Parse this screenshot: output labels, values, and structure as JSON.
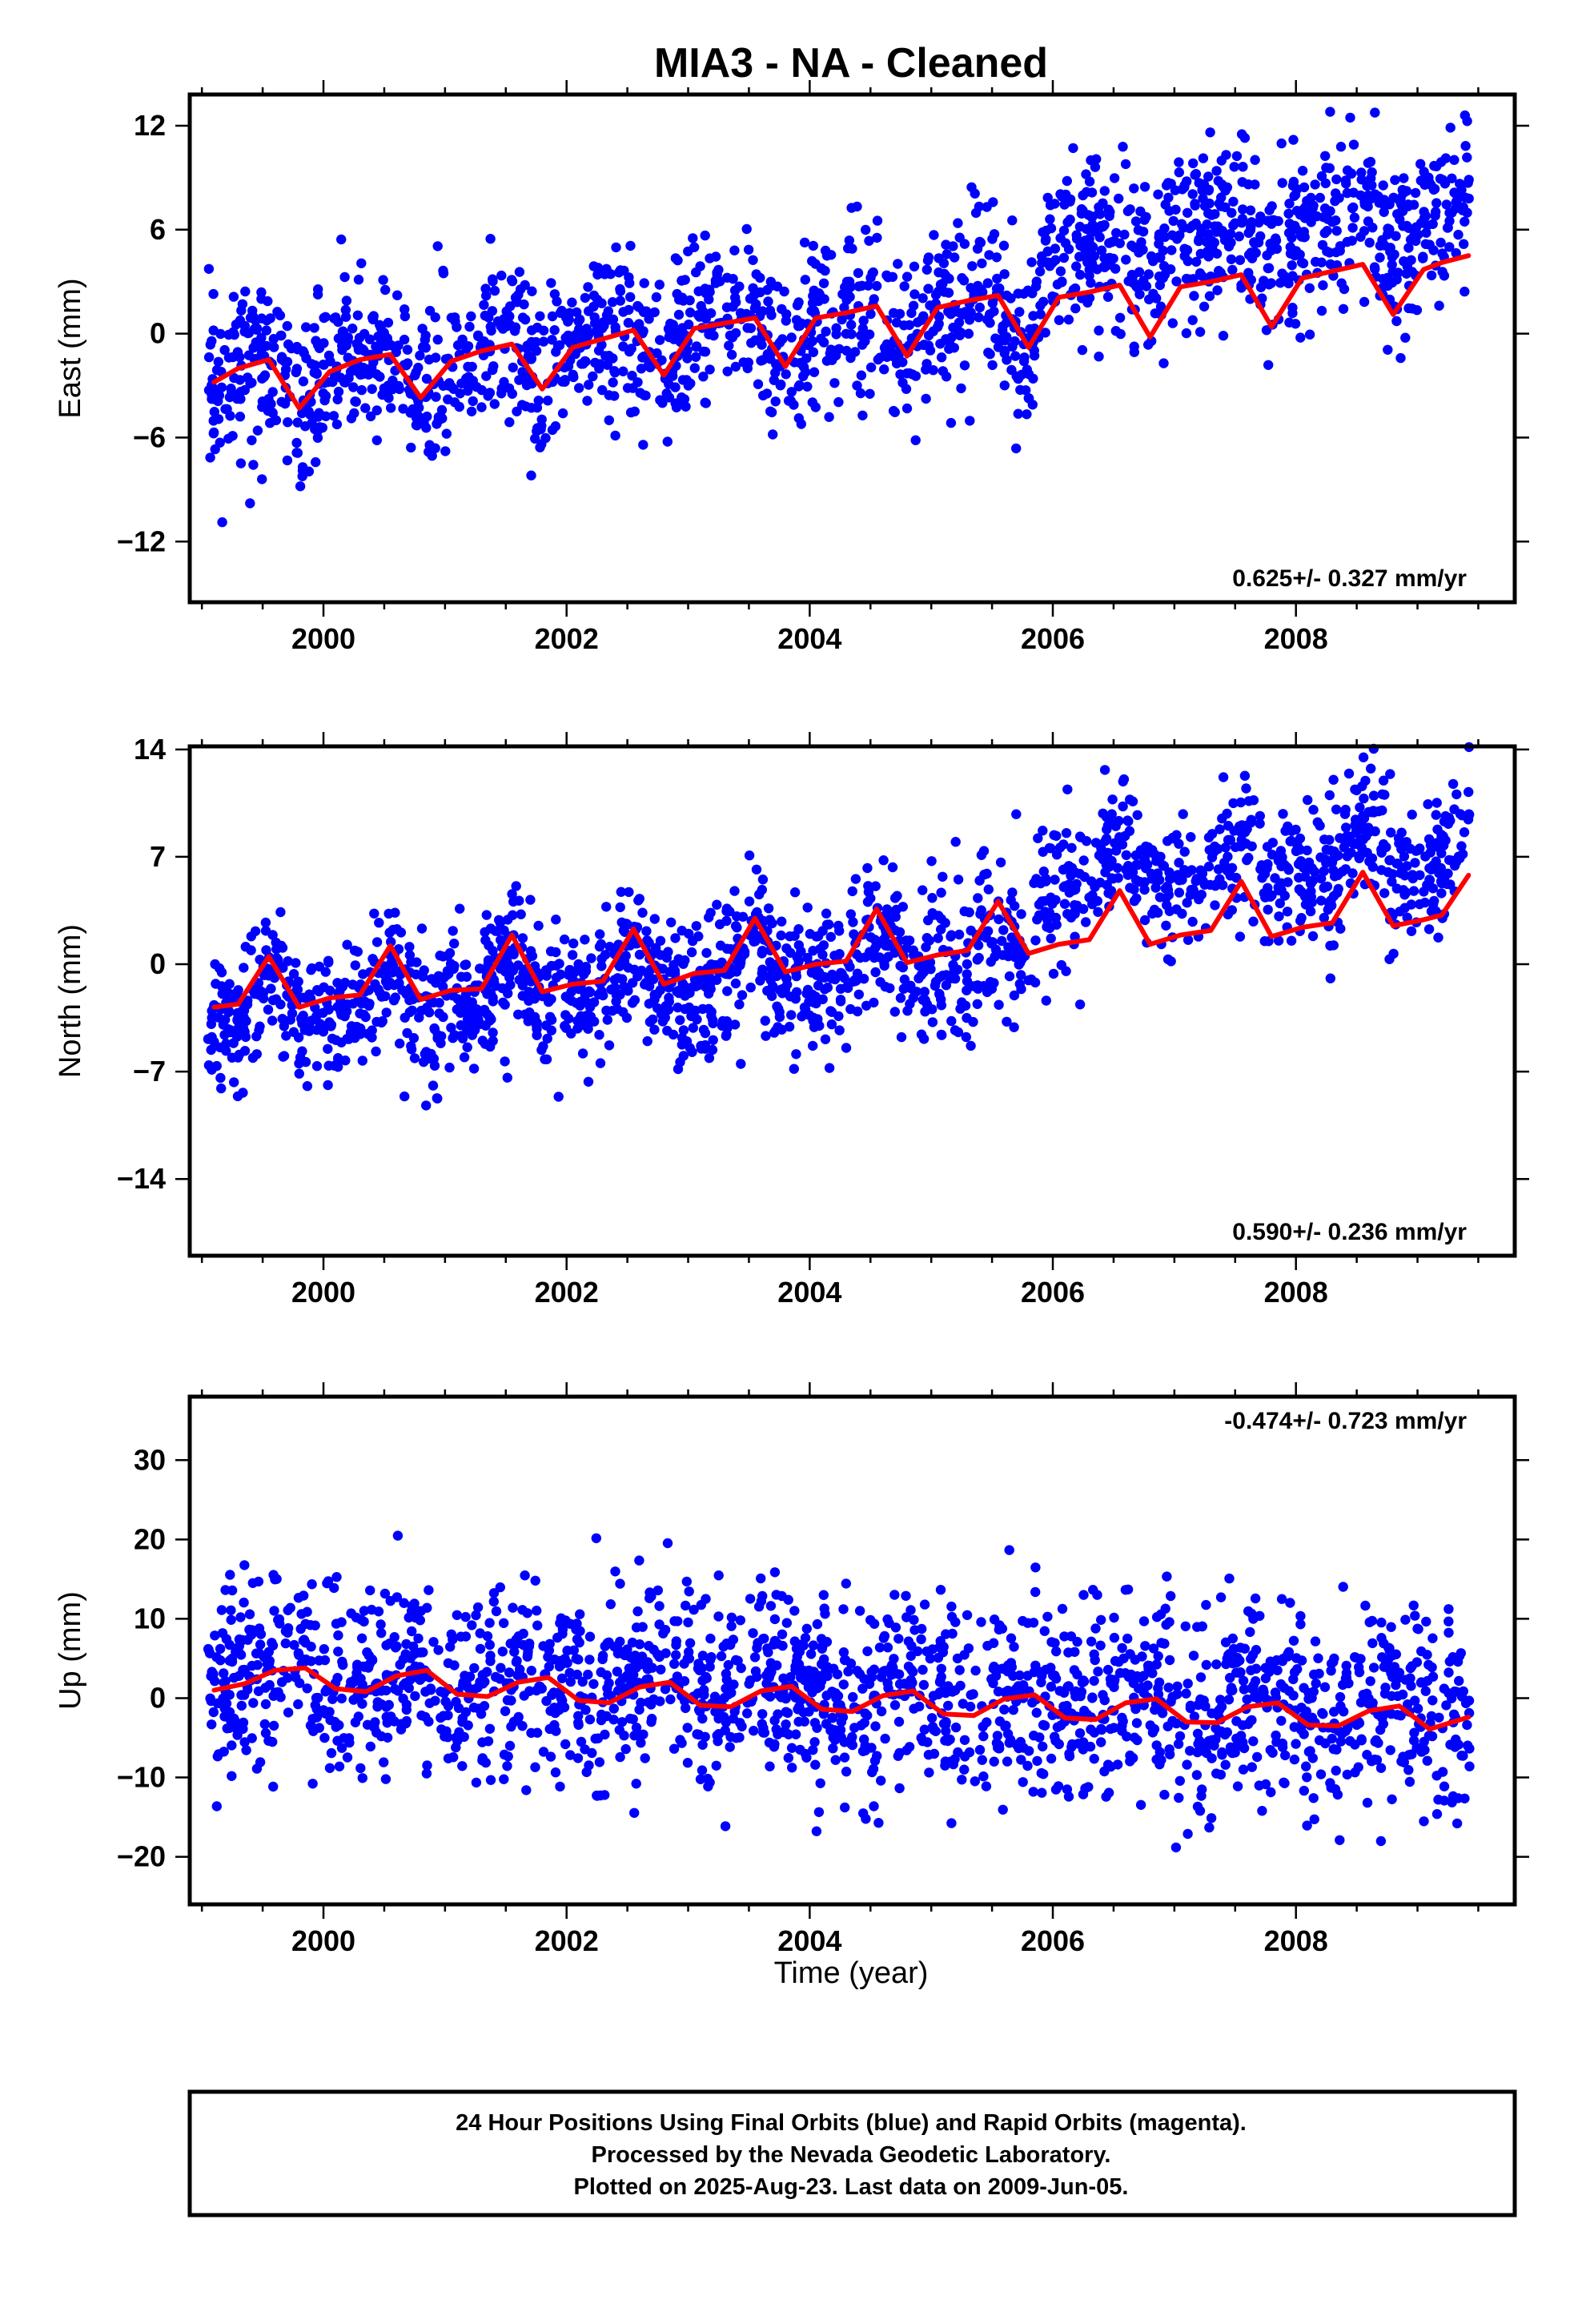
{
  "chart_data": {
    "title": "MIA3  - NA - Cleaned",
    "type": "scatter",
    "xlabel": "Time (year)",
    "xlim": [
      1998.9,
      2009.8
    ],
    "x_ticks": [
      2000,
      2002,
      2004,
      2006,
      2008
    ],
    "colors": {
      "points": "#0000ff",
      "fit": "#ff0000"
    },
    "panels": [
      {
        "ylabel": "East (mm)",
        "ylim": [
          -15.5,
          13.8
        ],
        "y_ticks": [
          12,
          6,
          0,
          -6,
          -12
        ],
        "rate_label": "0.625+/- 0.327 mm/yr",
        "fit": {
          "x": [
            1999.1,
            1999.3,
            1999.55,
            1999.8,
            2000.05,
            2000.3,
            2000.55,
            2000.8,
            2001.05,
            2001.3,
            2001.55,
            2001.8,
            2002.05,
            2002.3,
            2002.55,
            2002.8,
            2003.05,
            2003.3,
            2003.55,
            2003.8,
            2004.05,
            2004.3,
            2004.55,
            2004.8,
            2005.05,
            2005.3,
            2005.55,
            2005.8,
            2006.05,
            2006.3,
            2006.55,
            2006.8,
            2007.05,
            2007.3,
            2007.55,
            2007.8,
            2008.05,
            2008.3,
            2008.55,
            2008.8,
            2009.05,
            2009.2,
            2009.42
          ],
          "y": [
            -2.8,
            -2.0,
            -1.5,
            -4.3,
            -2.2,
            -1.5,
            -1.2,
            -3.7,
            -1.6,
            -1.0,
            -0.6,
            -3.2,
            -0.8,
            -0.3,
            0.2,
            -2.4,
            0.3,
            0.6,
            0.9,
            -1.9,
            0.9,
            1.2,
            1.6,
            -1.3,
            1.5,
            1.9,
            2.2,
            -0.8,
            2.1,
            2.4,
            2.8,
            -0.2,
            2.7,
            3.0,
            3.4,
            0.4,
            3.2,
            3.6,
            4.0,
            1.1,
            3.7,
            4.1,
            4.5
          ]
        }
      },
      {
        "ylabel": "North (mm)",
        "ylim": [
          -19,
          14.2
        ],
        "y_ticks": [
          14,
          7,
          0,
          -7,
          -14
        ],
        "rate_label": "0.590+/- 0.236 mm/yr",
        "fit": {
          "x": [
            1999.1,
            1999.3,
            1999.55,
            1999.8,
            2000.05,
            2000.3,
            2000.55,
            2000.8,
            2001.05,
            2001.3,
            2001.55,
            2001.8,
            2002.05,
            2002.3,
            2002.55,
            2002.8,
            2003.05,
            2003.3,
            2003.55,
            2003.8,
            2004.05,
            2004.3,
            2004.55,
            2004.8,
            2005.05,
            2005.3,
            2005.55,
            2005.8,
            2006.05,
            2006.3,
            2006.55,
            2006.8,
            2007.05,
            2007.3,
            2007.55,
            2007.8,
            2008.05,
            2008.3,
            2008.55,
            2008.8,
            2009.05,
            2009.2,
            2009.42
          ],
          "y": [
            -2.8,
            -2.6,
            0.5,
            -2.8,
            -2.2,
            -2.0,
            1.2,
            -2.3,
            -1.7,
            -1.6,
            1.9,
            -1.8,
            -1.3,
            -1.1,
            2.3,
            -1.3,
            -0.6,
            -0.4,
            3.0,
            -0.5,
            0.0,
            0.2,
            3.6,
            0.1,
            0.6,
            0.9,
            4.1,
            0.7,
            1.3,
            1.6,
            4.8,
            1.3,
            1.9,
            2.2,
            5.4,
            1.8,
            2.4,
            2.7,
            6.0,
            2.5,
            2.9,
            3.2,
            5.8
          ]
        }
      },
      {
        "ylabel": "Up (mm)",
        "ylim": [
          -26,
          38
        ],
        "y_ticks": [
          30,
          20,
          10,
          0,
          -10,
          -20
        ],
        "rate_label": "-0.474+/- 0.723 mm/yr",
        "fit": {
          "x": [
            1999.1,
            1999.35,
            1999.6,
            1999.85,
            2000.1,
            2000.35,
            2000.6,
            2000.85,
            2001.1,
            2001.35,
            2001.6,
            2001.85,
            2002.1,
            2002.35,
            2002.6,
            2002.85,
            2003.1,
            2003.35,
            2003.6,
            2003.85,
            2004.1,
            2004.35,
            2004.6,
            2004.85,
            2005.1,
            2005.35,
            2005.6,
            2005.85,
            2006.1,
            2006.35,
            2006.6,
            2006.85,
            2007.1,
            2007.35,
            2007.6,
            2007.85,
            2008.1,
            2008.35,
            2008.6,
            2008.85,
            2009.1,
            2009.42
          ],
          "y": [
            1.0,
            1.8,
            3.5,
            3.8,
            1.2,
            0.8,
            2.8,
            3.5,
            0.5,
            0.2,
            2.0,
            2.6,
            -0.3,
            -0.6,
            1.4,
            2.0,
            -0.9,
            -1.1,
            0.9,
            1.5,
            -1.4,
            -1.7,
            0.3,
            0.9,
            -2.0,
            -2.2,
            -0.1,
            0.4,
            -2.5,
            -2.7,
            -0.6,
            -0.1,
            -3.0,
            -3.1,
            -1.1,
            -0.6,
            -3.4,
            -3.5,
            -1.6,
            -1.0,
            -3.9,
            -2.4
          ]
        }
      }
    ]
  },
  "footer": {
    "line1": "24 Hour Positions Using Final Orbits (blue) and Rapid Orbits (magenta).",
    "line2": "Processed by the Nevada Geodetic Laboratory.",
    "line3": "Plotted on 2025-Aug-23. Last data on 2009-Jun-05."
  }
}
